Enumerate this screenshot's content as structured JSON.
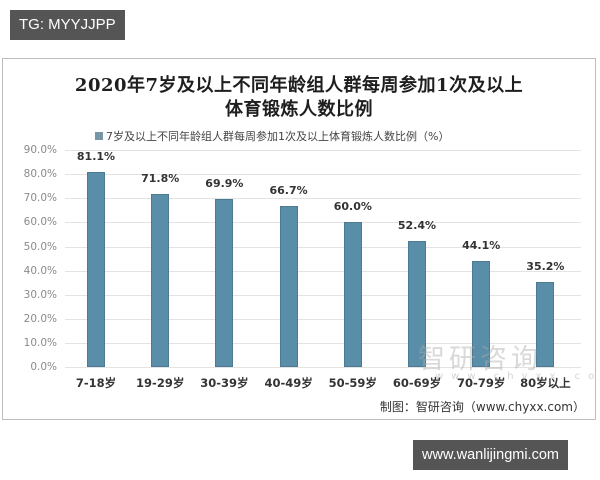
{
  "tags": {
    "top": "TG: MYYJJPP",
    "bottom": "www.wanlijingmi.com"
  },
  "chart_data": {
    "type": "bar",
    "title": "2020年7岁及以上不同年龄组人群每周参加1次及以上体育锻炼人数比例",
    "title_lines": [
      "2020年7岁及以上不同年龄组人群每周参加1次及以上",
      "体育锻炼人数比例"
    ],
    "legend": [
      "7岁及以上不同年龄组人群每周参加1次及以上体育锻炼人数比例（%）"
    ],
    "legend_position": "top",
    "categories": [
      "7-18岁",
      "19-29岁",
      "30-39岁",
      "40-49岁",
      "50-59岁",
      "60-69岁",
      "70-79岁",
      "80岁以上"
    ],
    "values": [
      81.1,
      71.8,
      69.9,
      66.7,
      60.0,
      52.4,
      44.1,
      35.2
    ],
    "data_labels": [
      "81.1%",
      "71.8%",
      "69.9%",
      "66.7%",
      "60.0%",
      "52.4%",
      "44.1%",
      "35.2%"
    ],
    "xlabel": "",
    "ylabel": "",
    "ylim": [
      0,
      90
    ],
    "yticks": [
      "0.0%",
      "10.0%",
      "20.0%",
      "30.0%",
      "40.0%",
      "50.0%",
      "60.0%",
      "70.0%",
      "80.0%",
      "90.0%"
    ],
    "grid": true,
    "bar_color": "#5a8ea8"
  },
  "watermark": {
    "text": "智研咨询",
    "url": "www.chyxx.com"
  },
  "source": "制图：智研咨询（www.chyxx.com）"
}
